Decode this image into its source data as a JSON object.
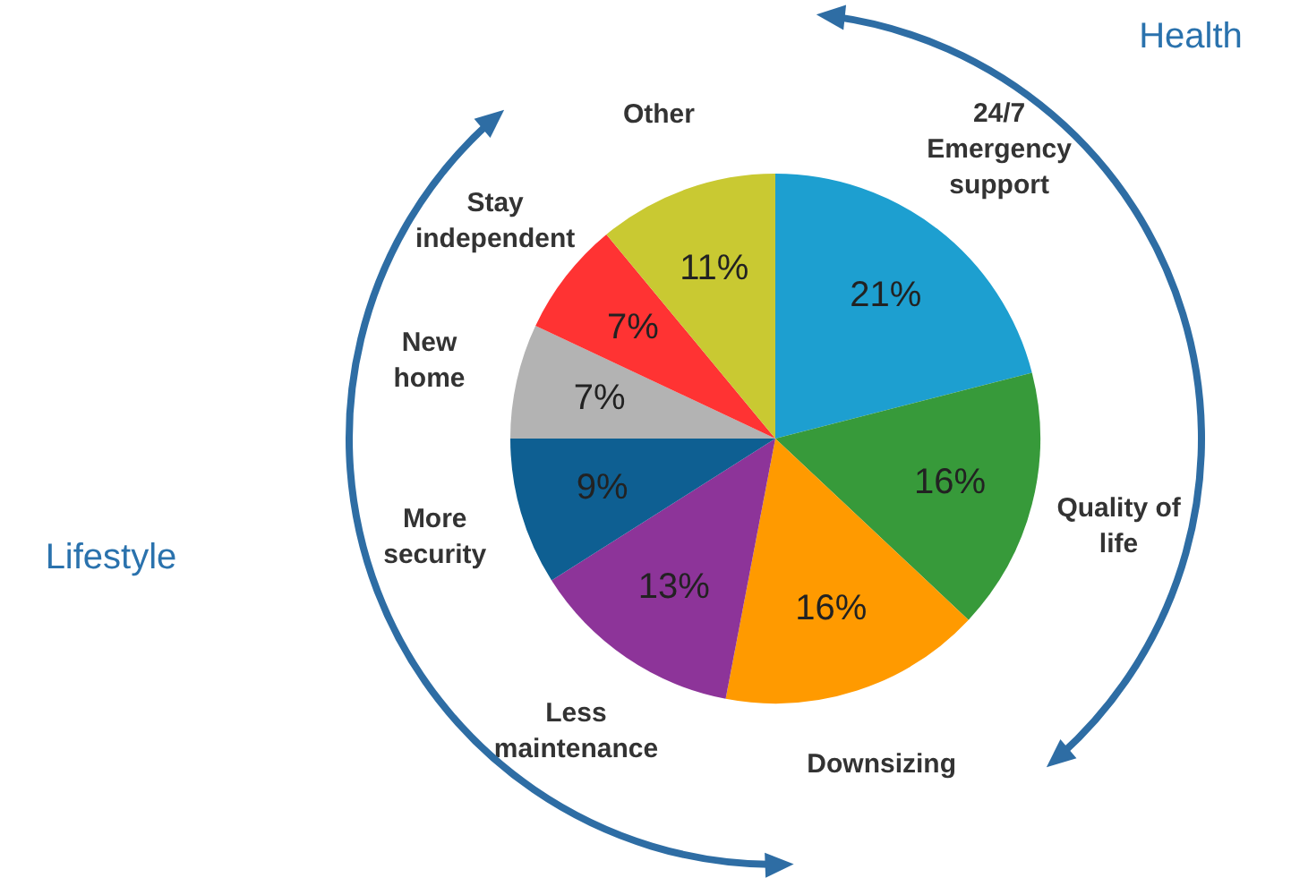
{
  "chart_data": {
    "type": "pie",
    "categories": [
      "24/7 Emergency support",
      "Quality of life",
      "Downsizing",
      "Less maintenance",
      "More security",
      "New home",
      "Stay independent",
      "Other"
    ],
    "values": [
      21,
      16,
      16,
      13,
      9,
      7,
      7,
      11
    ],
    "value_labels": [
      "21%",
      "16%",
      "16%",
      "13%",
      "9%",
      "7%",
      "7%",
      "11%"
    ],
    "colors": [
      "#1d9fd0",
      "#379a3a",
      "#ff9a00",
      "#8d3499",
      "#0e5f92",
      "#b3b3b3",
      "#ff3333",
      "#c9c932"
    ],
    "annotations": [
      "Health",
      "Lifestyle"
    ],
    "legend": false
  }
}
